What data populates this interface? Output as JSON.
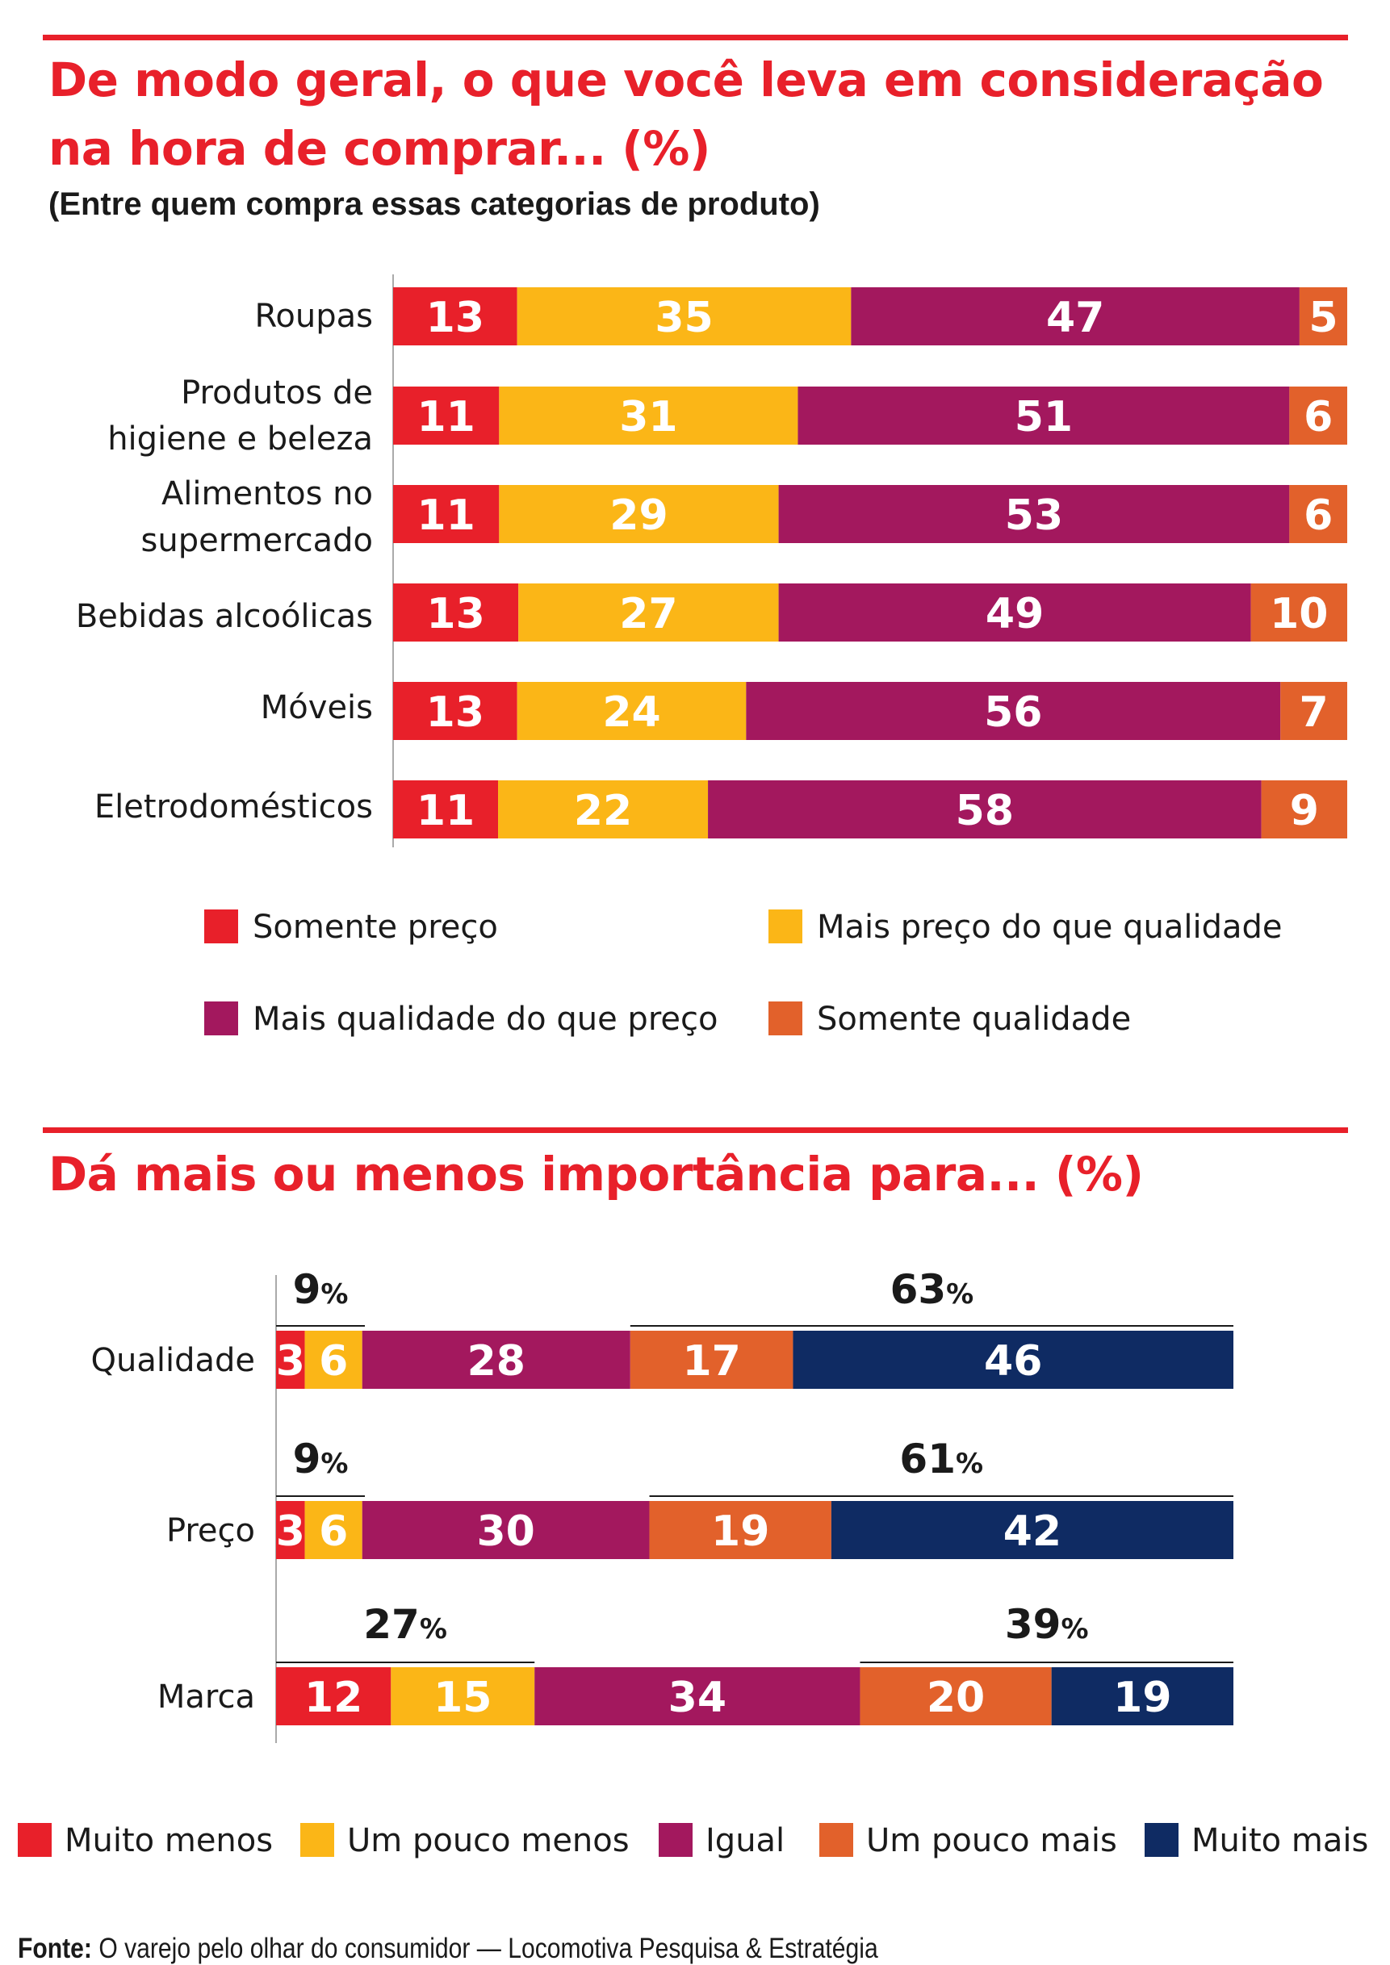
{
  "chart1": {
    "title_line1": "De modo geral, o que você leva em consideração",
    "title_line2": "na hora de comprar... (%)",
    "subtitle": "(Entre quem compra essas categorias de produto)"
  },
  "chart2": {
    "title": "Dá mais ou menos importância para... (%)"
  },
  "source": {
    "label": "Fonte:",
    "text": "O varejo pelo olhar do consumidor — Locomotiva Pesquisa & Estratégia"
  },
  "chart_data": [
    {
      "type": "bar",
      "orientation": "horizontal",
      "stacked": true,
      "title": "De modo geral, o que você leva em consideração na hora de comprar... (%)",
      "subtitle": "(Entre quem compra essas categorias de produto)",
      "categories": [
        [
          "Roupas"
        ],
        [
          "Produtos de",
          "higiene e beleza"
        ],
        [
          "Alimentos no",
          "supermercado"
        ],
        [
          "Bebidas alcoólicas"
        ],
        [
          "Móveis"
        ],
        [
          "Eletrodomésticos"
        ]
      ],
      "series": [
        {
          "name": "Somente preço",
          "color": "#e8202a",
          "values": [
            13,
            11,
            11,
            13,
            13,
            11
          ]
        },
        {
          "name": "Mais preço do que qualidade",
          "color": "#fbb617",
          "values": [
            35,
            31,
            29,
            27,
            24,
            22
          ]
        },
        {
          "name": "Mais qualidade do que preço",
          "color": "#a3185e",
          "values": [
            47,
            51,
            53,
            49,
            56,
            58
          ]
        },
        {
          "name": "Somente qualidade",
          "color": "#e2612b",
          "values": [
            5,
            6,
            6,
            10,
            7,
            9
          ]
        }
      ],
      "legend_position": "bottom",
      "grid": false
    },
    {
      "type": "bar",
      "orientation": "horizontal",
      "stacked": true,
      "title": "Dá mais ou menos importância para... (%)",
      "categories": [
        [
          "Qualidade"
        ],
        [
          "Preço"
        ],
        [
          "Marca"
        ]
      ],
      "series": [
        {
          "name": "Muito menos",
          "color": "#e8202a",
          "values": [
            3,
            3,
            12
          ]
        },
        {
          "name": "Um pouco menos",
          "color": "#fbb617",
          "values": [
            6,
            6,
            15
          ]
        },
        {
          "name": "Igual",
          "color": "#a3185e",
          "values": [
            28,
            30,
            34
          ]
        },
        {
          "name": "Um pouco mais",
          "color": "#e2612b",
          "values": [
            17,
            19,
            20
          ]
        },
        {
          "name": "Muito mais",
          "color": "#0f2b63",
          "values": [
            46,
            42,
            19
          ]
        }
      ],
      "group_totals": [
        {
          "less": "9",
          "more": "63"
        },
        {
          "less": "9",
          "more": "61"
        },
        {
          "less": "27",
          "more": "39"
        }
      ],
      "percent_sign": "%",
      "legend_position": "bottom",
      "grid": false
    }
  ]
}
